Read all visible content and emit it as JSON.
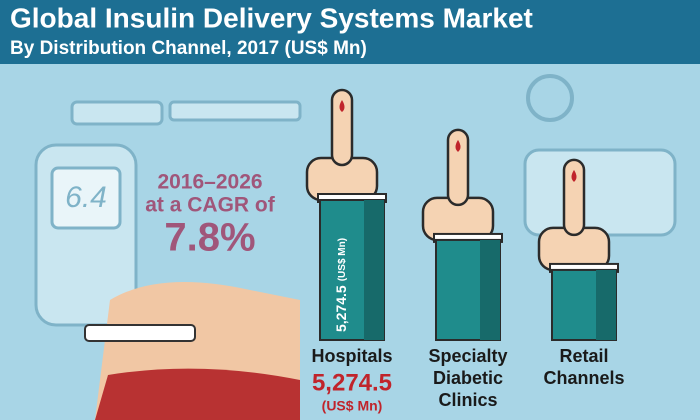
{
  "chart_data": {
    "type": "bar",
    "title": "Global Insulin Delivery Systems Market",
    "subtitle": "By Distribution Channel, 2017 (US$ Mn)",
    "categories": [
      "Hospitals",
      "Specialty Diabetic Clinics",
      "Retail Channels"
    ],
    "values": [
      5274.5,
      3770,
      2640
    ],
    "value_labels": [
      "5,274.5",
      null,
      null
    ],
    "unit_label": "(US$ Mn)",
    "color": "#1f8c8c",
    "annotations": [
      "2016–2026",
      "at a CAGR of",
      "7.8%"
    ],
    "meter_reading": "6.4"
  }
}
